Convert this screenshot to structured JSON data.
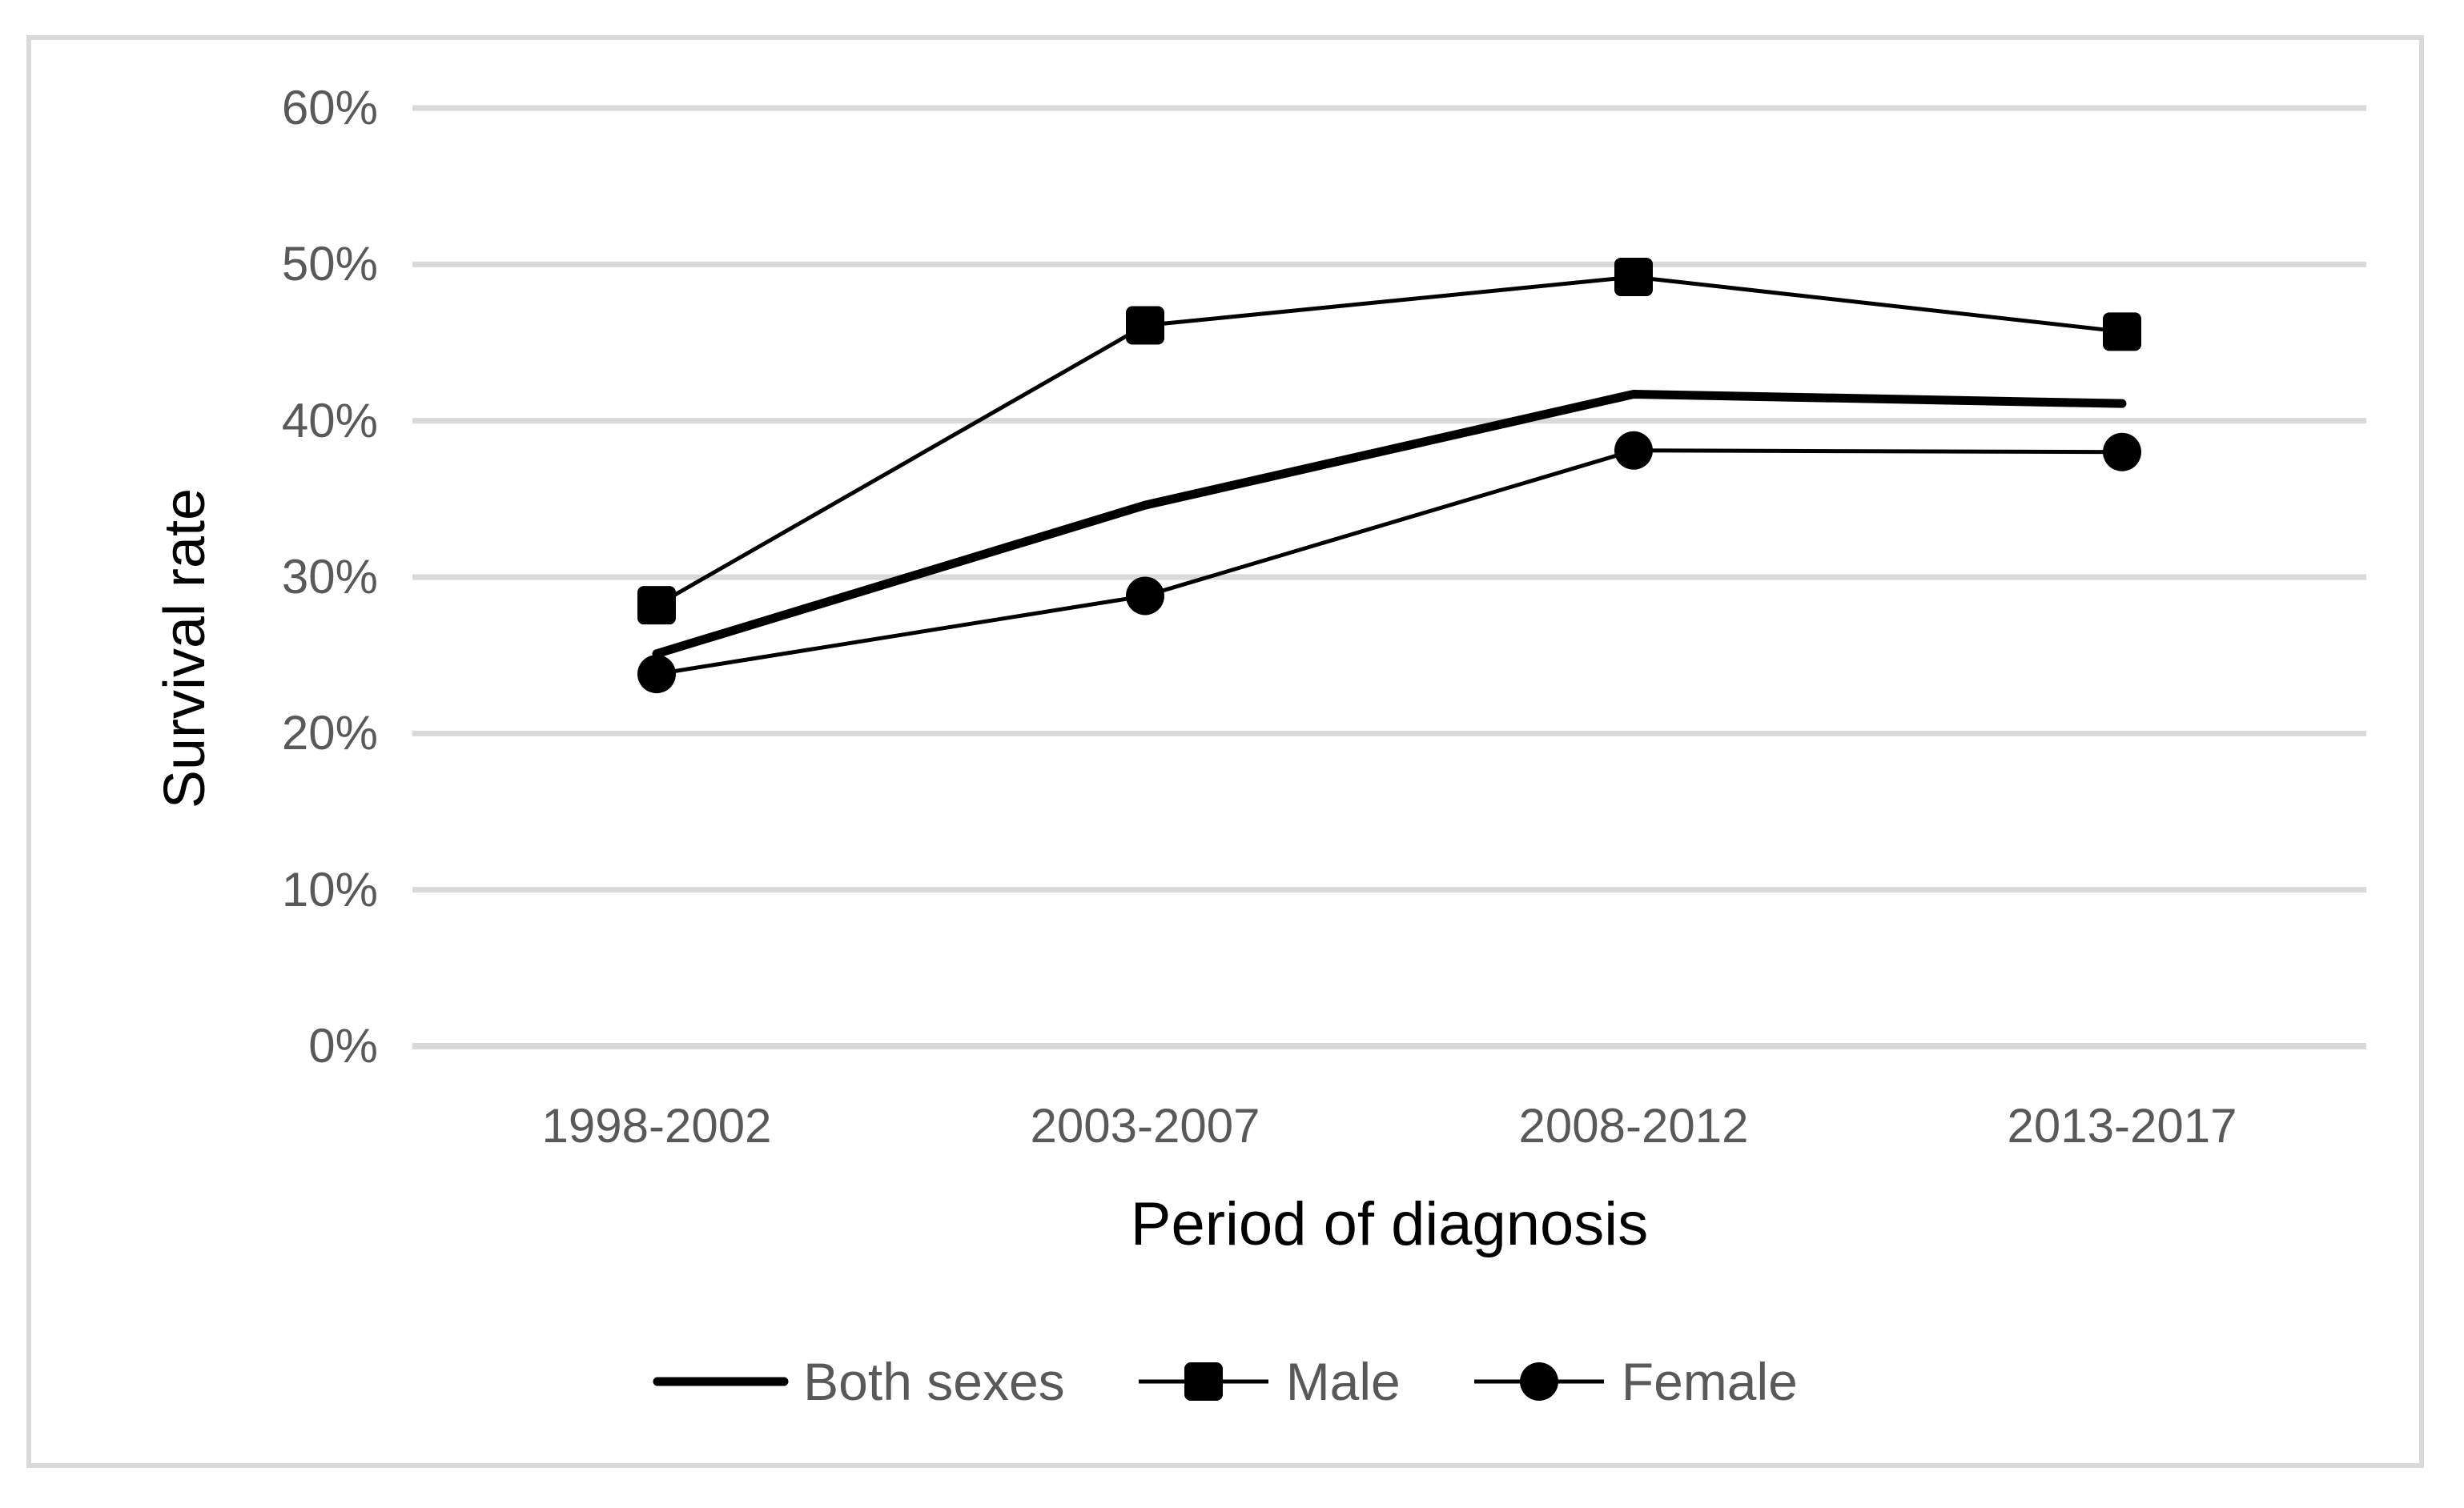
{
  "chart_data": {
    "type": "line",
    "categories": [
      "1998-2002",
      "2003-2007",
      "2008-2012",
      "2013-2017"
    ],
    "series": [
      {
        "name": "Both sexes",
        "marker": "none",
        "emphasis": "thick",
        "values": [
          25.1,
          34.6,
          41.7,
          41.1
        ]
      },
      {
        "name": "Male",
        "marker": "square",
        "emphasis": "normal",
        "values": [
          28.2,
          46.1,
          49.2,
          45.7
        ]
      },
      {
        "name": "Female",
        "marker": "circle",
        "emphasis": "normal",
        "values": [
          23.8,
          28.8,
          38.1,
          38.0
        ]
      }
    ],
    "xlabel": "Period of diagnosis",
    "ylabel": "Survival rate",
    "ylim": [
      0,
      60
    ],
    "ytick_step": 10,
    "ytick_labels": [
      "0%",
      "10%",
      "20%",
      "30%",
      "40%",
      "50%",
      "60%"
    ],
    "grid": true,
    "legend_position": "bottom-center",
    "colors": {
      "series": "#000000",
      "gridline": "#d9d9d9",
      "frame": "#d9d9d9",
      "tick_label": "#595959",
      "axis_title": "#000000",
      "legend_label": "#595959",
      "background": "#ffffff"
    }
  }
}
